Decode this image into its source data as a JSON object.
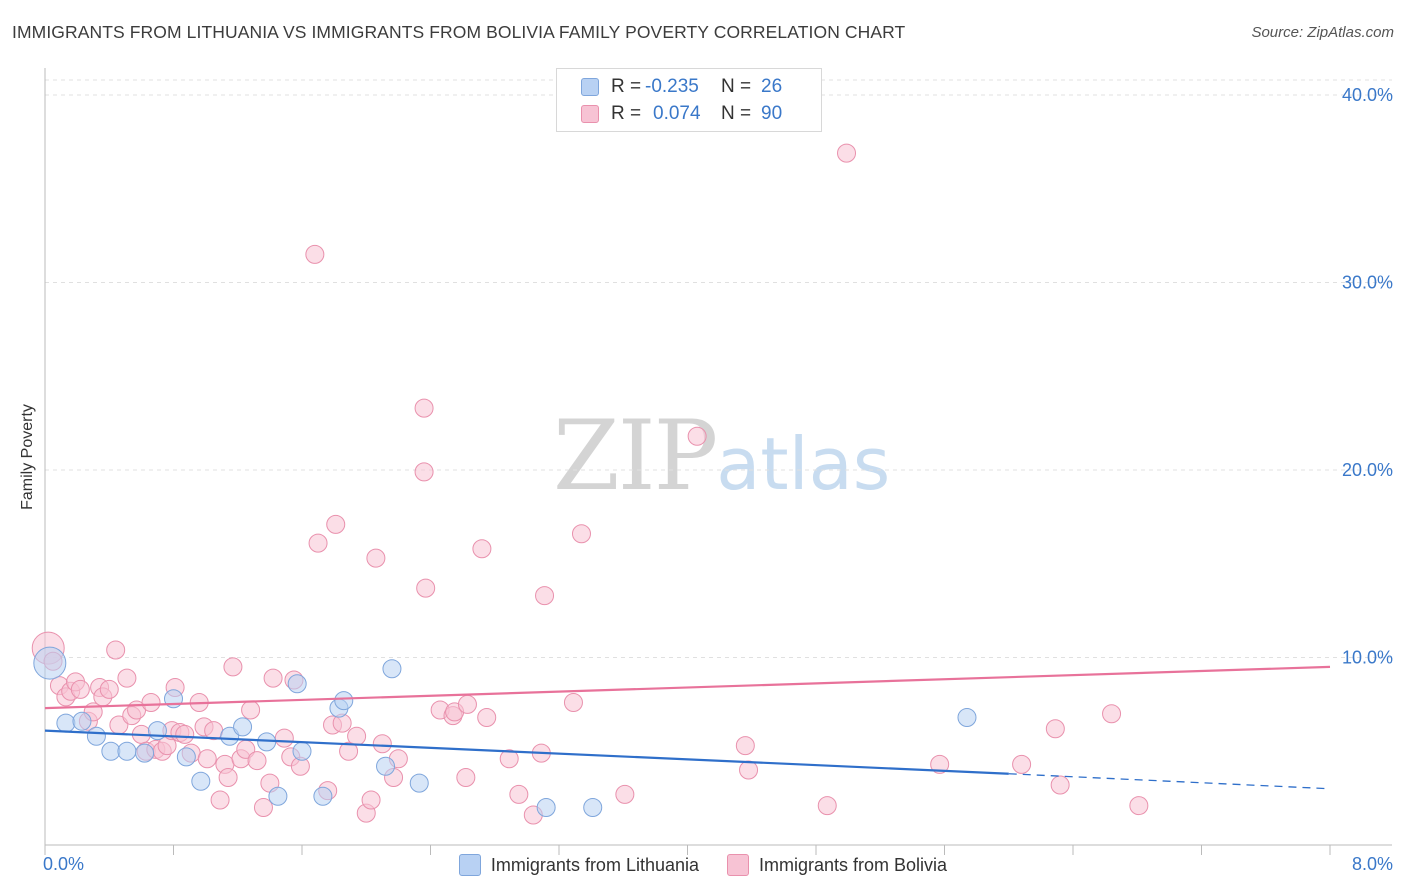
{
  "title": "IMMIGRANTS FROM LITHUANIA VS IMMIGRANTS FROM BOLIVIA FAMILY POVERTY CORRELATION CHART",
  "source": "Source: ZipAtlas.com",
  "watermark": {
    "zip": "ZIP",
    "atlas": "atlas"
  },
  "legend": {
    "lithuania": {
      "r_label": "R =",
      "r_value": "-0.235",
      "n_label": "N =",
      "n_value": "26"
    },
    "bolivia": {
      "r_label": "R =",
      "r_value": "0.074",
      "n_label": "N =",
      "n_value": "90"
    }
  },
  "colors": {
    "lithuania_fill": "#b8d1f3",
    "lithuania_stroke": "#7fa6dc",
    "lithuania_line": "#2f6fca",
    "bolivia_fill": "#f7c3d4",
    "bolivia_stroke": "#e991ad",
    "bolivia_line": "#e8729a",
    "tick_label": "#3a78c9",
    "grid": "#e0e0e0"
  },
  "chart_data": {
    "type": "scatter",
    "title": "IMMIGRANTS FROM LITHUANIA VS IMMIGRANTS FROM BOLIVIA FAMILY POVERTY CORRELATION CHART",
    "xlabel": "",
    "ylabel": "Family Poverty",
    "xlim": [
      0,
      8.0
    ],
    "ylim": [
      0,
      40.0
    ],
    "x_tick_labels": [
      "0.0%",
      "8.0%"
    ],
    "y_ticks": [
      10,
      20,
      30,
      40
    ],
    "y_tick_labels": [
      "10.0%",
      "20.0%",
      "30.0%",
      "40.0%"
    ],
    "series": [
      {
        "name": "Immigrants from Lithuania",
        "points": [
          [
            0.03,
            9.7
          ],
          [
            0.13,
            6.5
          ],
          [
            0.23,
            6.6
          ],
          [
            0.32,
            5.8
          ],
          [
            0.41,
            5.0
          ],
          [
            0.51,
            5.0
          ],
          [
            0.62,
            4.9
          ],
          [
            0.7,
            6.1
          ],
          [
            0.8,
            7.8
          ],
          [
            0.88,
            4.7
          ],
          [
            0.97,
            3.4
          ],
          [
            1.15,
            5.8
          ],
          [
            1.23,
            6.3
          ],
          [
            1.38,
            5.5
          ],
          [
            1.45,
            2.6
          ],
          [
            1.57,
            8.6
          ],
          [
            1.6,
            5.0
          ],
          [
            1.73,
            2.6
          ],
          [
            1.83,
            7.3
          ],
          [
            1.86,
            7.7
          ],
          [
            2.12,
            4.2
          ],
          [
            2.16,
            9.4
          ],
          [
            2.33,
            3.3
          ],
          [
            3.12,
            2.0
          ],
          [
            3.41,
            2.0
          ],
          [
            5.74,
            6.8
          ]
        ],
        "trend": {
          "x": [
            0,
            6.0
          ],
          "y": [
            6.1,
            3.8
          ],
          "dashed_extension": {
            "x": [
              6.0,
              8.0
            ],
            "y": [
              3.8,
              3.0
            ]
          }
        }
      },
      {
        "name": "Immigrants from Bolivia",
        "points": [
          [
            0.02,
            10.5
          ],
          [
            0.05,
            9.8
          ],
          [
            0.09,
            8.5
          ],
          [
            0.13,
            7.9
          ],
          [
            0.16,
            8.2
          ],
          [
            0.19,
            8.7
          ],
          [
            0.22,
            8.3
          ],
          [
            0.27,
            6.6
          ],
          [
            0.3,
            7.1
          ],
          [
            0.34,
            8.4
          ],
          [
            0.36,
            7.9
          ],
          [
            0.4,
            8.3
          ],
          [
            0.44,
            10.4
          ],
          [
            0.46,
            6.4
          ],
          [
            0.51,
            8.9
          ],
          [
            0.54,
            6.9
          ],
          [
            0.57,
            7.2
          ],
          [
            0.6,
            5.9
          ],
          [
            0.63,
            5.0
          ],
          [
            0.66,
            7.6
          ],
          [
            0.69,
            5.1
          ],
          [
            0.73,
            5.0
          ],
          [
            0.76,
            5.3
          ],
          [
            0.79,
            6.1
          ],
          [
            0.81,
            8.4
          ],
          [
            0.84,
            6.0
          ],
          [
            0.87,
            5.9
          ],
          [
            0.91,
            4.9
          ],
          [
            0.96,
            7.6
          ],
          [
            0.99,
            6.3
          ],
          [
            1.01,
            4.6
          ],
          [
            1.05,
            6.1
          ],
          [
            1.09,
            2.4
          ],
          [
            1.12,
            4.3
          ],
          [
            1.14,
            3.6
          ],
          [
            1.17,
            9.5
          ],
          [
            1.22,
            4.6
          ],
          [
            1.25,
            5.1
          ],
          [
            1.28,
            7.2
          ],
          [
            1.32,
            4.5
          ],
          [
            1.36,
            2.0
          ],
          [
            1.4,
            3.3
          ],
          [
            1.42,
            8.9
          ],
          [
            1.49,
            5.7
          ],
          [
            1.53,
            4.7
          ],
          [
            1.55,
            8.8
          ],
          [
            1.59,
            4.2
          ],
          [
            1.68,
            31.5
          ],
          [
            1.7,
            16.1
          ],
          [
            1.76,
            2.9
          ],
          [
            1.79,
            6.4
          ],
          [
            1.81,
            17.1
          ],
          [
            1.85,
            6.5
          ],
          [
            1.89,
            5.0
          ],
          [
            1.94,
            5.8
          ],
          [
            2.0,
            1.7
          ],
          [
            2.03,
            2.4
          ],
          [
            2.06,
            15.3
          ],
          [
            2.1,
            5.4
          ],
          [
            2.17,
            3.6
          ],
          [
            2.2,
            4.6
          ],
          [
            2.36,
            23.3
          ],
          [
            2.37,
            13.7
          ],
          [
            2.36,
            19.9
          ],
          [
            2.46,
            7.2
          ],
          [
            2.54,
            6.9
          ],
          [
            2.55,
            7.1
          ],
          [
            2.62,
            3.6
          ],
          [
            2.63,
            7.5
          ],
          [
            2.72,
            15.8
          ],
          [
            2.75,
            6.8
          ],
          [
            2.89,
            4.6
          ],
          [
            2.95,
            2.7
          ],
          [
            3.04,
            1.6
          ],
          [
            3.09,
            4.9
          ],
          [
            3.11,
            13.3
          ],
          [
            3.29,
            7.6
          ],
          [
            3.34,
            16.6
          ],
          [
            3.61,
            2.7
          ],
          [
            4.06,
            21.8
          ],
          [
            4.36,
            5.3
          ],
          [
            4.38,
            4.0
          ],
          [
            4.87,
            2.1
          ],
          [
            4.99,
            36.9
          ],
          [
            5.57,
            4.3
          ],
          [
            6.08,
            4.3
          ],
          [
            6.29,
            6.2
          ],
          [
            6.32,
            3.2
          ],
          [
            6.64,
            7.0
          ],
          [
            6.81,
            2.1
          ]
        ],
        "trend": {
          "x": [
            0,
            8.0
          ],
          "y": [
            7.3,
            9.5
          ]
        }
      }
    ]
  },
  "bottom_legend": {
    "lithuania": "Immigrants from Lithuania",
    "bolivia": "Immigrants from Bolivia"
  }
}
